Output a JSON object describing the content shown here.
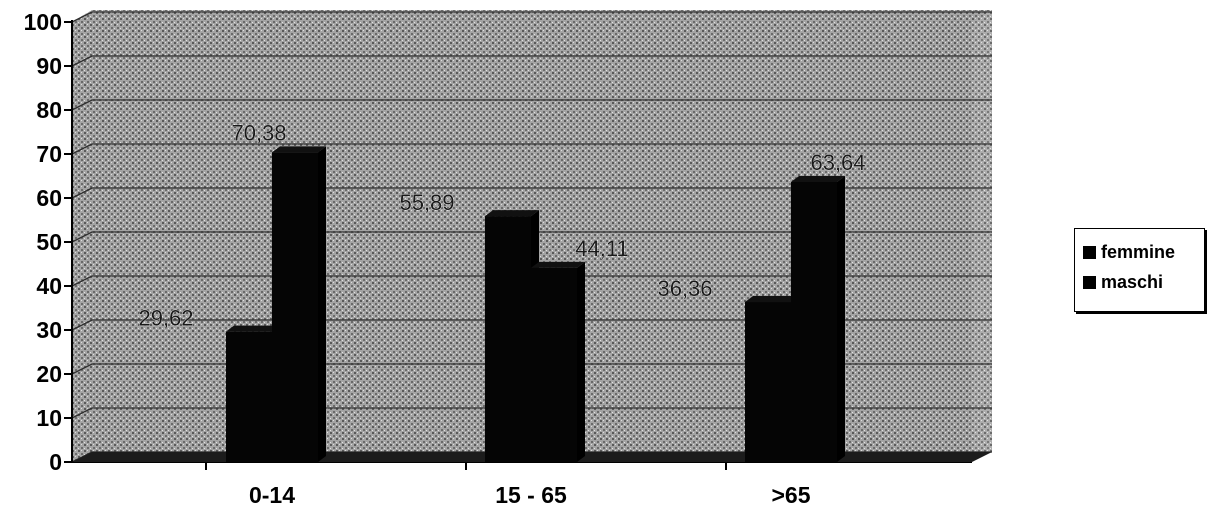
{
  "chart_data": {
    "type": "bar",
    "categories": [
      "0-14",
      "15 - 65",
      ">65"
    ],
    "series": [
      {
        "name": "femmine",
        "values": [
          29.62,
          55.89,
          36.36
        ],
        "labels": [
          "29,62",
          "55,89",
          "36,36"
        ]
      },
      {
        "name": "maschi",
        "values": [
          70.38,
          44.11,
          63.64
        ],
        "labels": [
          "70,38",
          "44,11",
          "63,64"
        ]
      }
    ],
    "ylim": [
      0,
      100
    ],
    "yticks": [
      "0",
      "10",
      "20",
      "30",
      "40",
      "50",
      "60",
      "70",
      "80",
      "90",
      "100"
    ],
    "grid": true,
    "legend_position": "right",
    "colors": {
      "bars": "#000000",
      "background": "#9a9a9a",
      "grid": "#333333"
    }
  }
}
